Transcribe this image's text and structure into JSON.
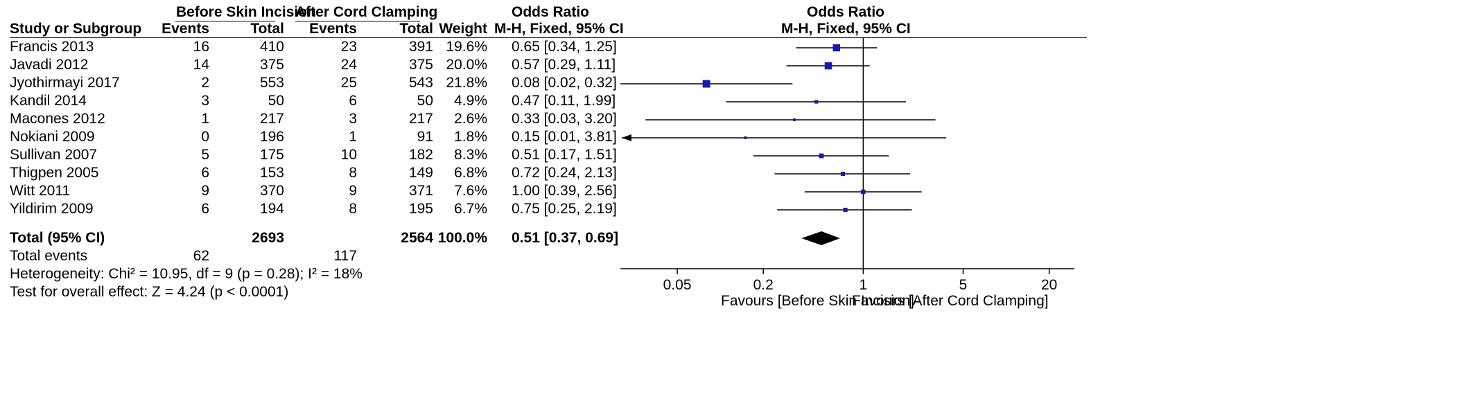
{
  "header": {
    "group1": "Before Skin Incision",
    "group2": "After Cord Clamping",
    "or_table": "Odds Ratio",
    "or_plot": "Odds Ratio",
    "col_study": "Study or Subgroup",
    "col_events1": "Events",
    "col_total1": "Total",
    "col_events2": "Events",
    "col_total2": "Total",
    "col_weight": "Weight",
    "col_method": "M-H, Fixed, 95% CI",
    "plot_method": "M-H, Fixed, 95% CI"
  },
  "studies": [
    {
      "study": "Francis 2013",
      "e1": "16",
      "t1": "410",
      "e2": "23",
      "t2": "391",
      "weight": "19.6%",
      "ci_text": "0.65 [0.34, 1.25]"
    },
    {
      "study": "Javadi 2012",
      "e1": "14",
      "t1": "375",
      "e2": "24",
      "t2": "375",
      "weight": "20.0%",
      "ci_text": "0.57 [0.29, 1.11]"
    },
    {
      "study": "Jyothirmayi 2017",
      "e1": "2",
      "t1": "553",
      "e2": "25",
      "t2": "543",
      "weight": "21.8%",
      "ci_text": "0.08 [0.02, 0.32]"
    },
    {
      "study": "Kandil 2014",
      "e1": "3",
      "t1": "50",
      "e2": "6",
      "t2": "50",
      "weight": "4.9%",
      "ci_text": "0.47 [0.11, 1.99]"
    },
    {
      "study": "Macones 2012",
      "e1": "1",
      "t1": "217",
      "e2": "3",
      "t2": "217",
      "weight": "2.6%",
      "ci_text": "0.33 [0.03, 3.20]"
    },
    {
      "study": "Nokiani 2009",
      "e1": "0",
      "t1": "196",
      "e2": "1",
      "t2": "91",
      "weight": "1.8%",
      "ci_text": "0.15 [0.01, 3.81]"
    },
    {
      "study": "Sullivan 2007",
      "e1": "5",
      "t1": "175",
      "e2": "10",
      "t2": "182",
      "weight": "8.3%",
      "ci_text": "0.51 [0.17, 1.51]"
    },
    {
      "study": "Thigpen 2005",
      "e1": "6",
      "t1": "153",
      "e2": "8",
      "t2": "149",
      "weight": "6.8%",
      "ci_text": "0.72 [0.24, 2.13]"
    },
    {
      "study": "Witt 2011",
      "e1": "9",
      "t1": "370",
      "e2": "9",
      "t2": "371",
      "weight": "7.6%",
      "ci_text": "1.00 [0.39, 2.56]"
    },
    {
      "study": "Yildirim 2009",
      "e1": "6",
      "t1": "194",
      "e2": "8",
      "t2": "195",
      "weight": "6.7%",
      "ci_text": "0.75 [0.25, 2.19]"
    }
  ],
  "total": {
    "label": "Total (95% CI)",
    "t1": "2693",
    "t2": "2564",
    "weight": "100.0%",
    "ci_text": "0.51 [0.37, 0.69]"
  },
  "events": {
    "label": "Total events",
    "e1": "62",
    "e2": "117"
  },
  "heterogeneity": "Heterogeneity: Chi² = 10.95, df = 9 (p = 0.28); I² = 18%",
  "overall_effect": "Test for overall effect: Z = 4.24 (p < 0.0001)",
  "footer": {
    "favours_left": "Favours [Before Skin Incision]",
    "favours_right": "Favours [After Cord Clamping]"
  },
  "colors": {
    "marker": "#1a1aa8",
    "diamond": "#000000",
    "line": "#000000"
  },
  "chart_data": {
    "type": "scatter",
    "title": "Odds Ratio",
    "subtitle": "M-H, Fixed, 95% CI",
    "x_scale": "log",
    "xlim": [
      0.02,
      30
    ],
    "x_ticks": [
      0.05,
      0.2,
      1,
      5,
      20
    ],
    "x_tick_labels": [
      "0.05",
      "0.2",
      "1",
      "5",
      "20"
    ],
    "reference_line": 1,
    "categories": [
      "Francis 2013",
      "Javadi 2012",
      "Jyothirmayi 2017",
      "Kandil 2014",
      "Macones 2012",
      "Nokiani 2009",
      "Sullivan 2007",
      "Thigpen 2005",
      "Witt 2011",
      "Yildirim 2009"
    ],
    "or": [
      0.65,
      0.57,
      0.08,
      0.47,
      0.33,
      0.15,
      0.51,
      0.72,
      1.0,
      0.75
    ],
    "lower": [
      0.34,
      0.29,
      0.02,
      0.11,
      0.03,
      0.01,
      0.17,
      0.24,
      0.39,
      0.25
    ],
    "upper": [
      1.25,
      1.11,
      0.32,
      1.99,
      3.2,
      3.81,
      1.51,
      2.13,
      2.56,
      2.19
    ],
    "weights": [
      19.6,
      20.0,
      21.8,
      4.9,
      2.6,
      1.8,
      8.3,
      6.8,
      7.6,
      6.7
    ],
    "pooled": {
      "or": 0.51,
      "lower": 0.37,
      "upper": 0.69
    },
    "xlabel_left": "Favours [Before Skin Incision]",
    "xlabel_right": "Favours [After Cord Clamping]"
  }
}
